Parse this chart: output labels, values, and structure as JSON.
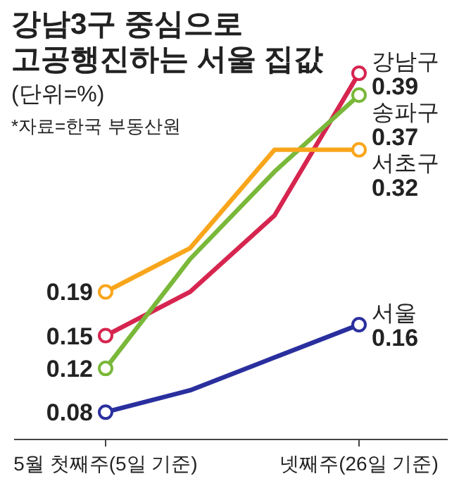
{
  "chart_data": {
    "type": "line",
    "title": "강남3구 중심으로\n고공행진하는 서울 집값",
    "subtitle": "(단위=%)",
    "annotations": [
      "*자료=한국 부동산원"
    ],
    "categories": [
      "5월 첫째주(5일 기준)",
      null,
      null,
      "넷째주(26일 기준)"
    ],
    "ylim": [
      0.055,
      0.457
    ],
    "tick_labels": "x",
    "marker": "circle",
    "series": [
      {
        "name": "강남구",
        "color": "#d6254f",
        "values": [
          0.15,
          0.19,
          0.26,
          0.39
        ],
        "value_labels": [
          "0.15",
          null,
          null,
          "0.39"
        ]
      },
      {
        "name": "송파구",
        "color": "#7ab83a",
        "values": [
          0.12,
          0.22,
          0.3,
          0.37
        ],
        "value_labels": [
          "0.12",
          null,
          null,
          "0.37"
        ]
      },
      {
        "name": "서초구",
        "color": "#f9a51b",
        "values": [
          0.19,
          0.23,
          0.32,
          0.32
        ],
        "value_labels": [
          "0.19",
          null,
          null,
          "0.32"
        ]
      },
      {
        "name": "서울",
        "color": "#2a2f9e",
        "values": [
          0.08,
          0.1,
          0.13,
          0.16
        ],
        "value_labels": [
          "0.08",
          null,
          null,
          "0.16"
        ]
      }
    ]
  }
}
